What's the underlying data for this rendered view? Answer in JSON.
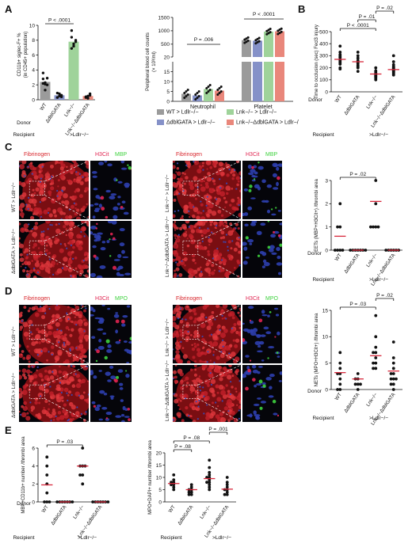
{
  "panels": {
    "A": "A",
    "B": "B",
    "C": "C",
    "D": "D",
    "E": "E"
  },
  "colors": {
    "wt": "#9b9b9b",
    "dbl": "#8591c8",
    "lnk": "#9fd39a",
    "lnkdbl": "#e9877b",
    "mean": "#d8283c",
    "fib": "#d8262c",
    "h3": "#e02450",
    "green": "#3ed23e",
    "dapi": "#3a4ab8"
  },
  "legend_A": {
    "wt": "WT > Ldlr−/−",
    "dbl": "ΔdblGATA > Ldlr−/−",
    "lnk": "Lnk−/− > Ldlr−/−",
    "lnkdbl": "Lnk−/−ΔdblGATA > Ldlr−/−"
  },
  "common": {
    "donor": "Donor",
    "recipient": "Recipient",
    "recipient_value": ">Ldlr−/−",
    "groups": [
      "WT",
      "ΔdblGATA",
      "Lnk−/−",
      "Lnk−/−ΔdblGATA"
    ],
    "groups3": [
      "WT",
      "ΔdblGATA",
      "Lnk−/−"
    ]
  },
  "microscopy": {
    "fibrinogen": "Fibrinogen",
    "h3cit": "H3Cit",
    "mbp": "MBP",
    "mpo": "MPO",
    "row_labels": [
      "WT > Ldlr−/−",
      "ΔdblGATA > Ldlr−/−",
      "Lnk−/− > Ldlr−/−",
      "Lnk−/−ΔdblGATA > Ldlr−/−"
    ]
  },
  "chart_data": [
    {
      "id": "A-left",
      "type": "bar",
      "ylabel": "CD11b+ siglec-F+ % (in CD45+ population)",
      "ylim": [
        0,
        10
      ],
      "yticks": [
        0,
        2,
        4,
        6,
        8,
        10
      ],
      "categories": [
        "WT",
        "ΔdblGATA",
        "Lnk−/−",
        "Lnk−/−ΔdblGATA"
      ],
      "values": [
        2.4,
        0.6,
        7.8,
        0.5
      ],
      "points": [
        [
          3.6,
          2.3,
          2.0,
          2.8,
          1.3,
          2.9,
          2.2,
          2.1
        ],
        [
          0.9,
          0.5,
          0.6,
          0.3,
          0.8,
          0.4
        ],
        [
          8.4,
          7.5,
          8.0,
          9.3,
          7.2,
          7.8,
          6.9
        ],
        [
          0.3,
          0.5,
          0.8,
          0.4,
          0.2,
          0.6
        ]
      ],
      "annotations": [
        {
          "text": "P < .0001",
          "from": 0,
          "to": 2
        }
      ]
    },
    {
      "id": "A-right",
      "type": "bar",
      "ylabel": "Peripheral blood cell counts (× 10³/ml)",
      "yticks_low": [
        0,
        5,
        10,
        15
      ],
      "yticks_high": [
        20,
        500,
        1000,
        1500
      ],
      "categories": [
        "Neutrophil",
        "Platelet"
      ],
      "series": [
        {
          "name": "WT > Ldlr−/−",
          "values": [
            3.8,
            650
          ]
        },
        {
          "name": "ΔdblGATA > Ldlr−/−",
          "values": [
            3.0,
            630
          ]
        },
        {
          "name": "Lnk−/− > Ldlr−/−",
          "values": [
            6.2,
            970
          ]
        },
        {
          "name": "Lnk−/−ΔdblGATA > Ldlr−/−",
          "values": [
            5.4,
            980
          ]
        }
      ],
      "annotations": [
        {
          "text": "P = .006",
          "category": "Neutrophil"
        },
        {
          "text": "P < .0001",
          "category": "Platelet"
        }
      ]
    },
    {
      "id": "B",
      "type": "scatter",
      "ylabel": "Time to occlusion (sec) Fecl3 injury",
      "ylim": [
        0,
        500
      ],
      "yticks": [
        0,
        100,
        200,
        300,
        400,
        500
      ],
      "categories": [
        "WT",
        "ΔdblGATA",
        "Lnk−/−",
        "Lnk−/−ΔdblGATA"
      ],
      "means": [
        270,
        250,
        148,
        185
      ],
      "points": [
        [
          380,
          330,
          310,
          300,
          290,
          285,
          270,
          260,
          250,
          240,
          230,
          200,
          190
        ],
        [
          330,
          300,
          280,
          260,
          250,
          245,
          235,
          220,
          210,
          200,
          170
        ],
        [
          200,
          175,
          165,
          155,
          150,
          145,
          140,
          135,
          130,
          125,
          120,
          110,
          100
        ],
        [
          300,
          250,
          225,
          210,
          200,
          195,
          190,
          185,
          180,
          175,
          170,
          160,
          150,
          140
        ]
      ],
      "annotations": [
        {
          "text": "P < .0001",
          "from": 0,
          "to": 2
        },
        {
          "text": "P = .01",
          "from": 1,
          "to": 2
        },
        {
          "text": "P = .02",
          "from": 2,
          "to": 3
        }
      ]
    },
    {
      "id": "C",
      "type": "scatter",
      "ylabel": "EETs (MBP+H3Cit+) /thrombi area",
      "ylim": [
        0,
        3
      ],
      "yticks": [
        0,
        1,
        2,
        3
      ],
      "categories": [
        "WT",
        "ΔdblGATA",
        "Lnk−/−",
        "Lnk−/−ΔdblGATA"
      ],
      "means": [
        0.6,
        0,
        2.1,
        0
      ],
      "points": [
        [
          2,
          1,
          1,
          0,
          0,
          0,
          0
        ],
        [
          0,
          0,
          0,
          0,
          0,
          0,
          0
        ],
        [
          3,
          2,
          1,
          1,
          1,
          1
        ],
        [
          0,
          0,
          0,
          0,
          0,
          0
        ]
      ],
      "annotations": [
        {
          "text": "P = .02",
          "from": 0,
          "to": 2
        }
      ]
    },
    {
      "id": "D",
      "type": "scatter",
      "ylabel": "NETs (MPO+H3Cit+) /thrombi area",
      "ylim": [
        0,
        15
      ],
      "yticks": [
        0,
        5,
        10,
        15
      ],
      "categories": [
        "WT",
        "ΔdblGATA",
        "Lnk−/−",
        "Lnk−/−ΔdblGATA"
      ],
      "means": [
        3.2,
        2.0,
        6.4,
        3.5
      ],
      "points": [
        [
          7,
          5,
          4,
          3,
          3,
          2,
          1,
          0,
          0
        ],
        [
          3,
          2,
          2,
          1,
          1,
          1,
          0
        ],
        [
          14,
          10,
          8,
          7,
          7,
          6,
          5,
          5,
          4,
          4
        ],
        [
          9,
          6,
          5,
          4,
          3,
          3,
          2,
          2,
          2,
          1,
          1,
          0
        ]
      ],
      "annotations": [
        {
          "text": "P = .03",
          "from": 0,
          "to": 2
        },
        {
          "text": "P = .02",
          "from": 2,
          "to": 3
        }
      ]
    },
    {
      "id": "E-left",
      "type": "scatter",
      "ylabel": "MBP+CD11b+ number /thrombi area",
      "ylim": [
        0,
        6
      ],
      "yticks": [
        0,
        2,
        4,
        6
      ],
      "categories": [
        "WT",
        "ΔdblGATA",
        "Lnk−/−",
        "Lnk−/−ΔdblGATA"
      ],
      "means": [
        1.9,
        0,
        4.0,
        0
      ],
      "points": [
        [
          5,
          4,
          3,
          2,
          1,
          0,
          0,
          0
        ],
        [
          0,
          0,
          0,
          0,
          0,
          0,
          0
        ],
        [
          6,
          4,
          4,
          4,
          3,
          3,
          2
        ],
        [
          0,
          0,
          0,
          0,
          0,
          0,
          0
        ]
      ],
      "annotations": [
        {
          "text": "P = .03",
          "from": 0,
          "to": 2
        }
      ]
    },
    {
      "id": "E-right",
      "type": "scatter",
      "ylabel": "MPO+DAPI+ number /thrombi area",
      "ylim": [
        0,
        20
      ],
      "yticks": [
        0,
        5,
        10,
        15,
        20
      ],
      "categories": [
        "WT",
        "ΔdblGATA",
        "Lnk−/−",
        "Lnk−/−ΔdblGATA"
      ],
      "means": [
        7.5,
        5.0,
        9.5,
        5.2
      ],
      "points": [
        [
          11,
          9,
          8,
          8,
          7,
          7,
          6,
          5
        ],
        [
          7,
          6,
          5,
          5,
          4,
          4,
          3,
          3
        ],
        [
          17,
          14,
          12,
          11,
          10,
          10,
          9,
          8,
          8,
          7,
          6,
          5
        ],
        [
          10,
          8,
          7,
          6,
          5,
          5,
          4,
          3,
          3
        ]
      ],
      "annotations": [
        {
          "text": "P = .08",
          "from": 0,
          "to": 1
        },
        {
          "text": "P = .08",
          "from": 0,
          "to": 2
        },
        {
          "text": "P = .001",
          "from": 2,
          "to": 3
        }
      ]
    }
  ]
}
